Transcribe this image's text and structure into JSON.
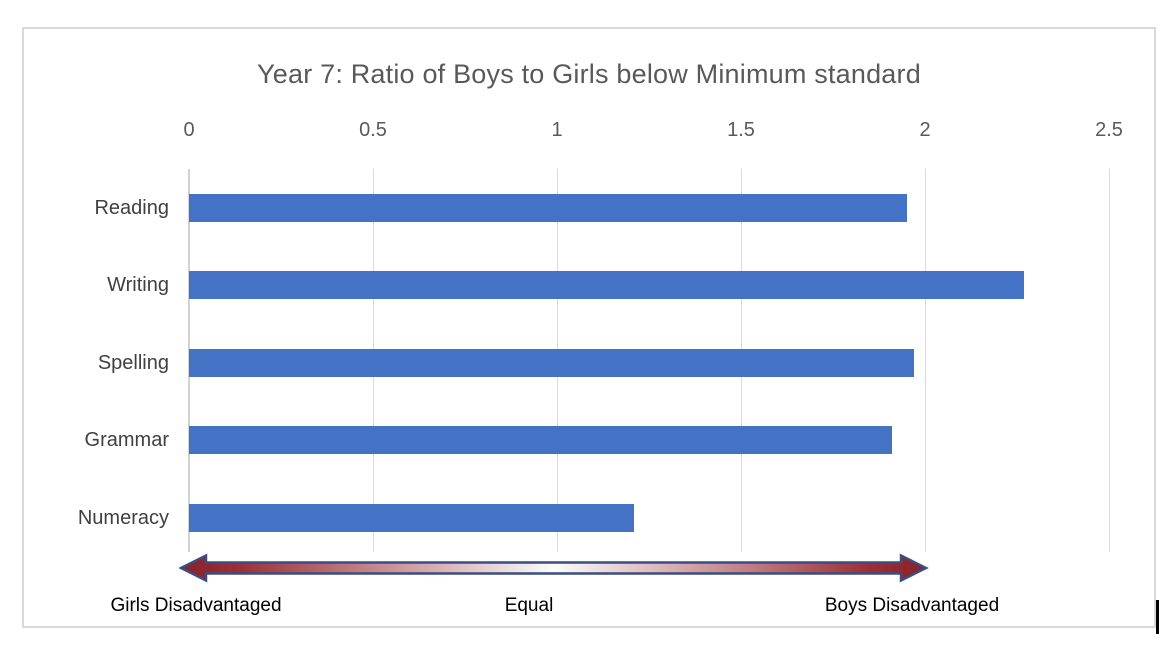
{
  "chart_data": {
    "type": "bar",
    "orientation": "horizontal",
    "title": "Year 7: Ratio of Boys to Girls below Minimum standard",
    "categories": [
      "Reading",
      "Writing",
      "Spelling",
      "Grammar",
      "Numeracy"
    ],
    "values": [
      1.95,
      2.27,
      1.97,
      1.91,
      1.21
    ],
    "xlim": [
      0,
      2.5
    ],
    "x_ticks": [
      0,
      0.5,
      1,
      1.5,
      2,
      2.5
    ],
    "x_tick_labels": [
      "0",
      "0.5",
      "1",
      "1.5",
      "2",
      "2.5"
    ],
    "axis_labels_position": "top",
    "grid": true,
    "legend": false,
    "bar_color": "#4472C4",
    "gridline_color": "#D9D9D9",
    "title_color": "#595959",
    "axis_text_color": "#595959",
    "category_text_color": "#404040"
  },
  "annotation": {
    "left_label": "Girls Disadvantaged",
    "center_label": "Equal",
    "right_label": "Boys Disadvantaged",
    "text_color": "#000000",
    "arrow_outline_color": "#3A4E7E",
    "arrow_end_color": "#86212B",
    "arrow_middle_color": "#FBFBFD"
  },
  "frame": {
    "background": "#FFFFFF",
    "border_color": "#D9D9D9"
  }
}
